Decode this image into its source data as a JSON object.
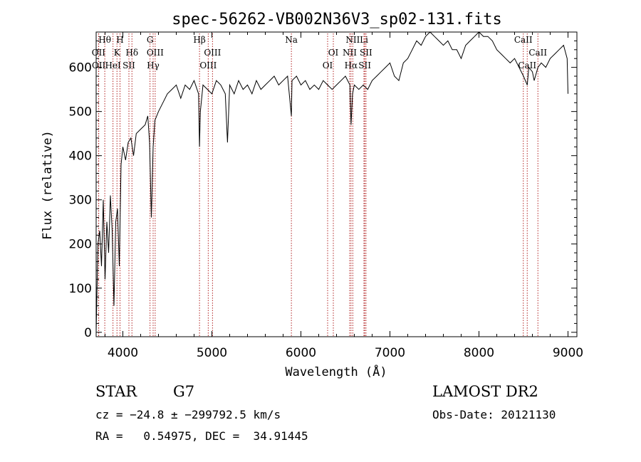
{
  "chart_data": {
    "type": "line",
    "title": "spec-56262-VB002N36V3_sp02-131.fits",
    "xlabel": "Wavelength (Å)",
    "ylabel": "Flux (relative)",
    "xlim": [
      3700,
      9100
    ],
    "ylim": [
      -10,
      680
    ],
    "xticks": [
      4000,
      5000,
      6000,
      7000,
      8000,
      9000
    ],
    "yticks": [
      0,
      100,
      200,
      300,
      400,
      500,
      600
    ],
    "grid": false,
    "line_color": "#000000",
    "marker_color": "#b22222",
    "series": [
      {
        "x": [
          3700,
          3720,
          3740,
          3760,
          3780,
          3800,
          3820,
          3840,
          3860,
          3880,
          3900,
          3920,
          3940,
          3960,
          3980,
          4000,
          4030,
          4060,
          4090,
          4120,
          4150,
          4200,
          4250,
          4280,
          4300,
          4320,
          4340,
          4360,
          4400,
          4450,
          4500,
          4550,
          4600,
          4650,
          4700,
          4750,
          4800,
          4850,
          4861,
          4870,
          4900,
          4950,
          5000,
          5050,
          5100,
          5150,
          5175,
          5200,
          5250,
          5300,
          5350,
          5400,
          5450,
          5500,
          5550,
          5600,
          5650,
          5700,
          5750,
          5800,
          5850,
          5893,
          5900,
          5950,
          6000,
          6050,
          6100,
          6150,
          6200,
          6250,
          6300,
          6350,
          6400,
          6450,
          6500,
          6550,
          6563,
          6580,
          6600,
          6650,
          6700,
          6750,
          6800,
          6850,
          6900,
          6950,
          7000,
          7050,
          7100,
          7150,
          7200,
          7250,
          7300,
          7350,
          7400,
          7450,
          7500,
          7550,
          7600,
          7650,
          7700,
          7750,
          7800,
          7850,
          7900,
          7950,
          8000,
          8050,
          8100,
          8150,
          8200,
          8250,
          8300,
          8350,
          8400,
          8450,
          8500,
          8542,
          8560,
          8600,
          8620,
          8662,
          8700,
          8750,
          8800,
          8850,
          8900,
          8950,
          8990,
          9000
        ],
        "y": [
          0,
          200,
          230,
          150,
          300,
          120,
          250,
          180,
          310,
          230,
          60,
          250,
          280,
          150,
          380,
          420,
          390,
          430,
          440,
          400,
          450,
          460,
          470,
          490,
          430,
          260,
          420,
          480,
          500,
          520,
          540,
          550,
          560,
          530,
          560,
          550,
          570,
          540,
          420,
          500,
          560,
          550,
          540,
          570,
          560,
          540,
          430,
          560,
          540,
          570,
          550,
          560,
          540,
          570,
          550,
          560,
          570,
          580,
          560,
          570,
          580,
          490,
          570,
          580,
          560,
          570,
          550,
          560,
          550,
          570,
          560,
          550,
          560,
          570,
          580,
          560,
          470,
          540,
          560,
          550,
          560,
          550,
          570,
          580,
          590,
          600,
          610,
          580,
          570,
          610,
          620,
          640,
          660,
          650,
          670,
          680,
          670,
          660,
          650,
          660,
          640,
          640,
          620,
          650,
          660,
          670,
          680,
          670,
          670,
          660,
          640,
          630,
          620,
          610,
          620,
          600,
          580,
          560,
          600,
          590,
          570,
          600,
          610,
          600,
          620,
          630,
          640,
          650,
          620,
          540
        ]
      }
    ],
    "lines": [
      {
        "label": "Hθ",
        "x": 3797,
        "row": 0
      },
      {
        "label": "H",
        "x": 3968,
        "row": 0
      },
      {
        "label": "G",
        "x": 4305,
        "row": 0
      },
      {
        "label": "Hβ",
        "x": 4861,
        "row": 0
      },
      {
        "label": "Na",
        "x": 5893,
        "row": 0
      },
      {
        "label": "NII",
        "x": 6583,
        "row": 0
      },
      {
        "label": "Li",
        "x": 6708,
        "row": 0
      },
      {
        "label": "CaII",
        "x": 8498,
        "row": 0
      },
      {
        "label": "OII",
        "x": 3727,
        "row": 1
      },
      {
        "label": "K",
        "x": 3934,
        "row": 1
      },
      {
        "label": "Hδ",
        "x": 4102,
        "row": 1
      },
      {
        "label": "OIII",
        "x": 4363,
        "row": 1
      },
      {
        "label": "OIII",
        "x": 5007,
        "row": 1
      },
      {
        "label": "OI",
        "x": 6364,
        "row": 1
      },
      {
        "label": "NII",
        "x": 6548,
        "row": 1
      },
      {
        "label": "SII",
        "x": 6731,
        "row": 1
      },
      {
        "label": "CaII",
        "x": 8662,
        "row": 1
      },
      {
        "label": "OII",
        "x": 3729,
        "row": 2
      },
      {
        "label": "HeI",
        "x": 3889,
        "row": 2
      },
      {
        "label": "SII",
        "x": 4068,
        "row": 2
      },
      {
        "label": "Hγ",
        "x": 4340,
        "row": 2
      },
      {
        "label": "OIII",
        "x": 4959,
        "row": 2
      },
      {
        "label": "OI",
        "x": 6300,
        "row": 2
      },
      {
        "label": "Hα",
        "x": 6563,
        "row": 2
      },
      {
        "label": "SII",
        "x": 6717,
        "row": 2
      },
      {
        "label": "CaII",
        "x": 8542,
        "row": 2
      }
    ]
  },
  "info": {
    "object_class": "STAR",
    "subclass": "G7",
    "survey": "LAMOST DR2",
    "cz": "cz = −24.8 ± −299792.5 km/s",
    "obs_date": "Obs-Date: 20121130",
    "coords": "RA =   0.54975, DEC =  34.91445"
  }
}
